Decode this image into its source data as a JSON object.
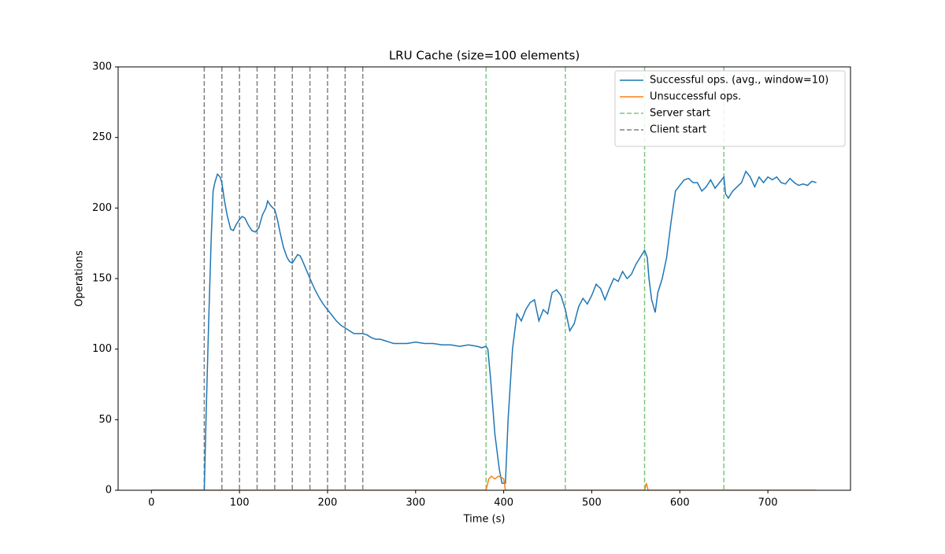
{
  "chart_data": {
    "type": "line",
    "title": "LRU Cache (size=100 elements)",
    "xlabel": "Time (s)",
    "ylabel": "Operations",
    "xlim": [
      -37.8,
      793.8
    ],
    "ylim": [
      0,
      300
    ],
    "xticks": [
      0,
      100,
      200,
      300,
      400,
      500,
      600,
      700
    ],
    "yticks": [
      0,
      50,
      100,
      150,
      200,
      250,
      300
    ],
    "legend": "upper right",
    "series": [
      {
        "name": "Successful ops. (avg., window=10)",
        "color": "#1f77b4",
        "x": [
          0,
          55,
          60,
          62,
          65,
          68,
          70,
          72,
          75,
          78,
          80,
          83,
          86,
          90,
          93,
          96,
          100,
          103,
          106,
          110,
          114,
          118,
          122,
          126,
          130,
          132,
          135,
          138,
          140,
          143,
          146,
          150,
          154,
          157,
          160,
          163,
          166,
          169,
          172,
          176,
          180,
          185,
          190,
          195,
          200,
          205,
          210,
          215,
          220,
          225,
          230,
          235,
          240,
          245,
          250,
          255,
          260,
          265,
          270,
          275,
          280,
          290,
          300,
          310,
          320,
          330,
          340,
          350,
          360,
          370,
          375,
          380,
          382,
          385,
          390,
          395,
          398,
          402,
          405,
          410,
          415,
          420,
          425,
          430,
          435,
          440,
          445,
          450,
          455,
          460,
          465,
          470,
          475,
          480,
          485,
          490,
          495,
          500,
          505,
          510,
          515,
          520,
          525,
          530,
          535,
          540,
          545,
          550,
          555,
          560,
          563,
          565,
          568,
          572,
          575,
          580,
          585,
          590,
          595,
          600,
          605,
          610,
          615,
          620,
          625,
          630,
          635,
          640,
          645,
          650,
          652,
          655,
          660,
          665,
          670,
          675,
          680,
          685,
          690,
          695,
          700,
          705,
          710,
          715,
          720,
          725,
          730,
          735,
          740,
          745,
          750,
          755
        ],
        "values": [
          0,
          0,
          0,
          50,
          120,
          180,
          212,
          218,
          224,
          222,
          218,
          205,
          195,
          185,
          184,
          188,
          192,
          194,
          193,
          188,
          184,
          183,
          186,
          195,
          200,
          205,
          202,
          200,
          199,
          192,
          183,
          172,
          165,
          162,
          161,
          164,
          167,
          166,
          162,
          156,
          150,
          143,
          137,
          132,
          128,
          124,
          120,
          117,
          115,
          113,
          111,
          111,
          111,
          110,
          108,
          107,
          107,
          106,
          105,
          104,
          104,
          104,
          105,
          104,
          104,
          103,
          103,
          102,
          103,
          102,
          101,
          102,
          100,
          80,
          40,
          15,
          5,
          5,
          50,
          100,
          125,
          120,
          128,
          133,
          135,
          120,
          128,
          125,
          140,
          142,
          138,
          128,
          113,
          118,
          130,
          136,
          132,
          138,
          146,
          143,
          135,
          143,
          150,
          148,
          155,
          150,
          153,
          160,
          165,
          170,
          165,
          150,
          135,
          126,
          140,
          150,
          165,
          190,
          212,
          216,
          220,
          221,
          218,
          218,
          212,
          215,
          220,
          214,
          218,
          222,
          210,
          207,
          212,
          215,
          218,
          226,
          222,
          215,
          222,
          218,
          222,
          220,
          222,
          218,
          217,
          221,
          218,
          216,
          217,
          216,
          219,
          218
        ]
      },
      {
        "name": "Unsuccessful ops.",
        "color": "#ff7f0e",
        "x": [
          0,
          380,
          383,
          386,
          390,
          394,
          398,
          400,
          402,
          560,
          562,
          564,
          755
        ],
        "values": [
          0,
          0,
          8,
          10,
          8,
          10,
          9,
          8,
          0,
          0,
          5,
          0,
          0
        ]
      }
    ],
    "vlines": [
      {
        "name": "Server start",
        "color": "#80c680",
        "linestyle": "dashed",
        "x": [
          380,
          470,
          560,
          650
        ]
      },
      {
        "name": "Client start",
        "color": "#808080",
        "linestyle": "dashed",
        "x": [
          60,
          80,
          100,
          120,
          140,
          160,
          180,
          200,
          220,
          240
        ]
      }
    ]
  }
}
